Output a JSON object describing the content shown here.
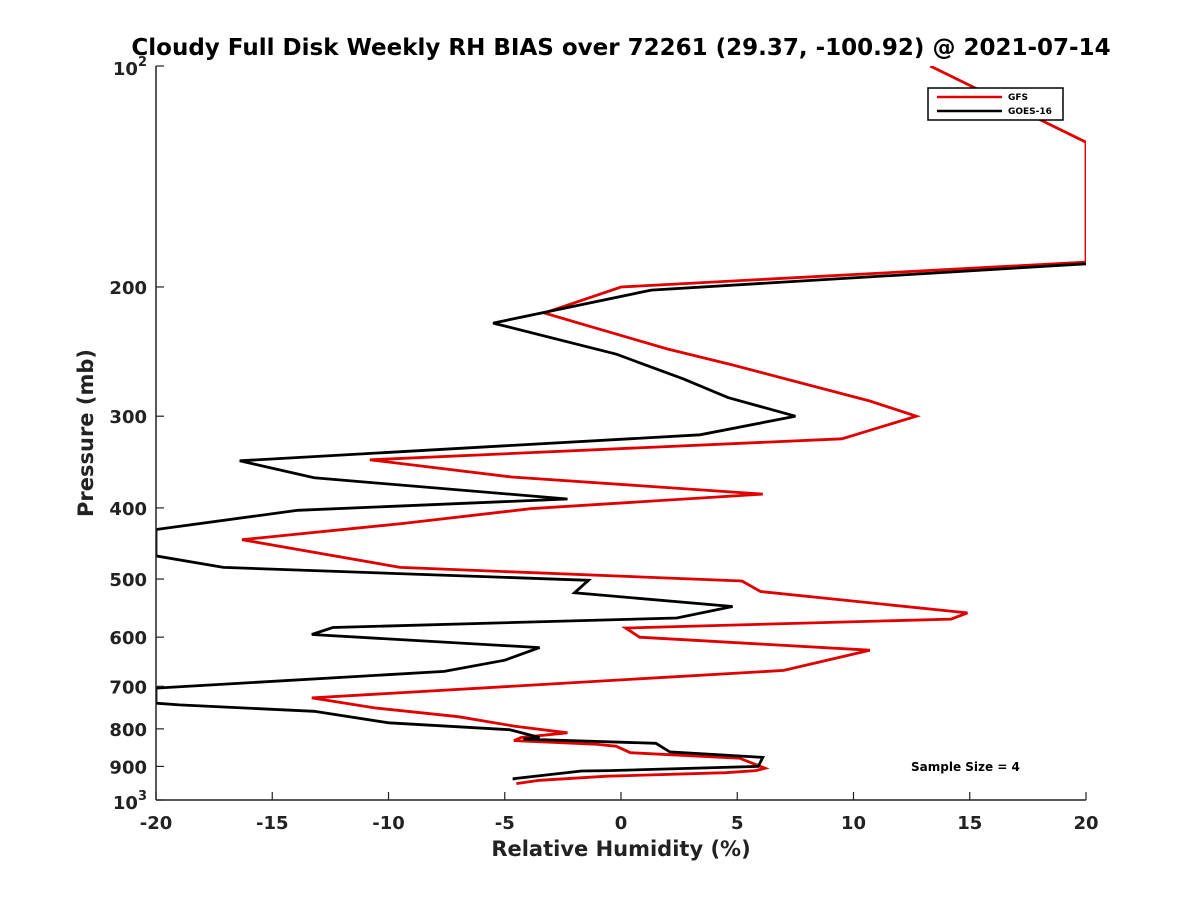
{
  "chart_data": {
    "type": "line",
    "title": "Cloudy Full Disk Weekly RH BIAS over 72261 (29.37, -100.92) @ 2021-07-14",
    "xlabel": "Relative Humidity (%)",
    "ylabel": "Pressure (mb)",
    "xlim": [
      -20,
      20
    ],
    "ylim": [
      100,
      1000
    ],
    "yscale": "log",
    "y_reversed": true,
    "x_ticks": [
      "-20",
      "-15",
      "-10",
      "-5",
      "0",
      "5",
      "10",
      "15",
      "20"
    ],
    "y_ticks": [
      {
        "value": 100,
        "base": "10",
        "exp": "2"
      },
      {
        "value": 200,
        "label": "200"
      },
      {
        "value": 300,
        "label": "300"
      },
      {
        "value": 400,
        "label": "400"
      },
      {
        "value": 500,
        "label": "500"
      },
      {
        "value": 600,
        "label": "600"
      },
      {
        "value": 700,
        "label": "700"
      },
      {
        "value": 800,
        "label": "800"
      },
      {
        "value": 900,
        "label": "900"
      },
      {
        "value": 1000,
        "base": "10",
        "exp": "3"
      }
    ],
    "grid": false,
    "legend": {
      "position": "top-right",
      "entries": [
        "GFS",
        "GOES-16"
      ]
    },
    "annotation": "Sample Size = 4",
    "series": [
      {
        "name": "GFS",
        "color": "#e00000",
        "points": [
          [
            13.3,
            100
          ],
          [
            20.0,
            127
          ],
          [
            20.0,
            185
          ],
          [
            0.0,
            200
          ],
          [
            -3.3,
            217
          ],
          [
            -1.0,
            228
          ],
          [
            2.0,
            243
          ],
          [
            4.7,
            255
          ],
          [
            10.7,
            286
          ],
          [
            12.7,
            300
          ],
          [
            9.5,
            322
          ],
          [
            -10.8,
            344
          ],
          [
            -4.7,
            363
          ],
          [
            6.1,
            383
          ],
          [
            -3.9,
            401
          ],
          [
            -9.4,
            420
          ],
          [
            -16.3,
            442
          ],
          [
            -9.5,
            482
          ],
          [
            5.2,
            503
          ],
          [
            6.0,
            520
          ],
          [
            14.9,
            556
          ],
          [
            14.2,
            567
          ],
          [
            0.2,
            583
          ],
          [
            0.8,
            600
          ],
          [
            10.7,
            625
          ],
          [
            7.0,
            666
          ],
          [
            -13.3,
            726
          ],
          [
            -10.6,
            749
          ],
          [
            -7.0,
            770
          ],
          [
            -4.6,
            793
          ],
          [
            -2.3,
            810
          ],
          [
            -4.3,
            822
          ],
          [
            -4.6,
            830
          ],
          [
            -1.0,
            840
          ],
          [
            -0.2,
            845
          ],
          [
            0.4,
            862
          ],
          [
            5.1,
            877
          ],
          [
            6.2,
            905
          ],
          [
            5.8,
            912
          ],
          [
            4.5,
            918
          ],
          [
            -0.6,
            928
          ],
          [
            -3.5,
            940
          ],
          [
            -4.5,
            950
          ]
        ]
      },
      {
        "name": "GOES-16",
        "color": "#000000",
        "points": [
          [
            20.0,
            186
          ],
          [
            1.3,
            202
          ],
          [
            -5.5,
            224
          ],
          [
            -0.2,
            247
          ],
          [
            2.7,
            267
          ],
          [
            4.6,
            283
          ],
          [
            7.5,
            300
          ],
          [
            3.4,
            318
          ],
          [
            -16.4,
            345
          ],
          [
            -13.2,
            364
          ],
          [
            -2.3,
            389
          ],
          [
            -13.9,
            403
          ],
          [
            -20.0,
            428
          ],
          [
            -20.0,
            465
          ],
          [
            -17.1,
            482
          ],
          [
            -1.4,
            502
          ],
          [
            -2.0,
            522
          ],
          [
            4.8,
            545
          ],
          [
            2.4,
            565
          ],
          [
            -12.4,
            582
          ],
          [
            -13.3,
            595
          ],
          [
            -3.5,
            620
          ],
          [
            -5.0,
            645
          ],
          [
            -7.6,
            668
          ],
          [
            -20.0,
            704
          ],
          [
            -20.0,
            738
          ],
          [
            -19.0,
            742
          ],
          [
            -13.2,
            757
          ],
          [
            -10.0,
            785
          ],
          [
            -4.8,
            802
          ],
          [
            -3.5,
            822
          ],
          [
            -4.2,
            826
          ],
          [
            1.5,
            837
          ],
          [
            2.1,
            860
          ],
          [
            6.1,
            875
          ],
          [
            5.9,
            900
          ],
          [
            -0.5,
            912
          ],
          [
            -1.7,
            913
          ],
          [
            -4.6,
            935
          ],
          [
            -4.6,
            940
          ]
        ]
      }
    ]
  }
}
